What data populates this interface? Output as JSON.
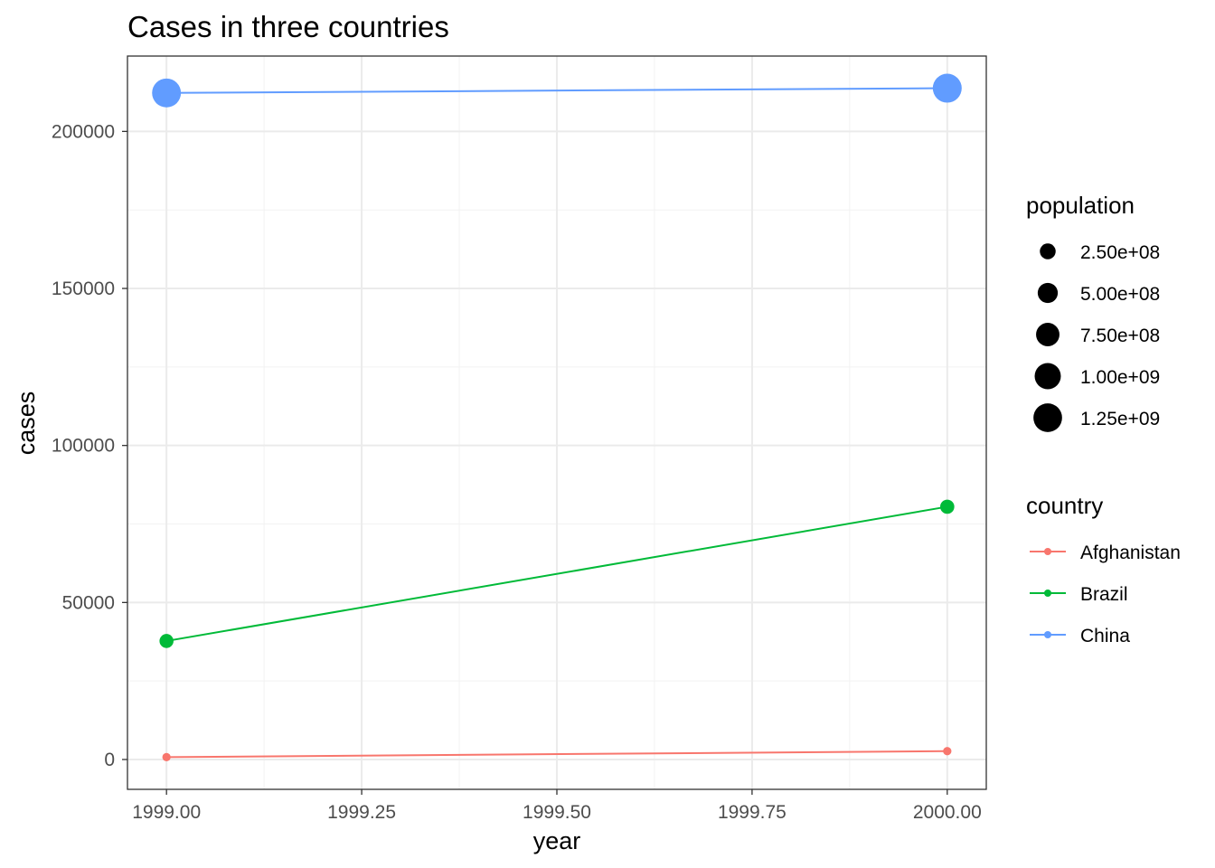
{
  "chart_data": {
    "type": "line",
    "title": "Cases in three countries",
    "xlabel": "year",
    "ylabel": "cases",
    "xlim": [
      1998.95,
      2000.05
    ],
    "ylim": [
      -9500,
      224000
    ],
    "x_ticks": [
      1999.0,
      1999.25,
      1999.5,
      1999.75,
      2000.0
    ],
    "x_tick_labels": [
      "1999.00",
      "1999.25",
      "1999.50",
      "1999.75",
      "2000.00"
    ],
    "y_ticks": [
      0,
      50000,
      100000,
      150000,
      200000
    ],
    "y_tick_labels": [
      "0",
      "50000",
      "100000",
      "150000",
      "200000"
    ],
    "grid": true,
    "theme": "bw",
    "legend_position": "right",
    "series": [
      {
        "name": "Afghanistan",
        "color": "#F8766D",
        "points": [
          {
            "x": 1999,
            "y": 745,
            "population": 19987071
          },
          {
            "x": 2000,
            "y": 2666,
            "population": 20595360
          }
        ]
      },
      {
        "name": "Brazil",
        "color": "#00BA38",
        "points": [
          {
            "x": 1999,
            "y": 37737,
            "population": 172006362
          },
          {
            "x": 2000,
            "y": 80488,
            "population": 174504898
          }
        ]
      },
      {
        "name": "China",
        "color": "#619CFF",
        "points": [
          {
            "x": 1999,
            "y": 212258,
            "population": 1272915272
          },
          {
            "x": 2000,
            "y": 213766,
            "population": 1280428583
          }
        ]
      }
    ],
    "size_legend": {
      "title": "population",
      "values": [
        250000000,
        500000000,
        750000000,
        1000000000,
        1250000000
      ],
      "labels": [
        "2.50e+08",
        "5.00e+08",
        "7.50e+08",
        "1.00e+09",
        "1.25e+09"
      ]
    },
    "color_legend": {
      "title": "country",
      "labels": [
        "Afghanistan",
        "Brazil",
        "China"
      ]
    }
  }
}
